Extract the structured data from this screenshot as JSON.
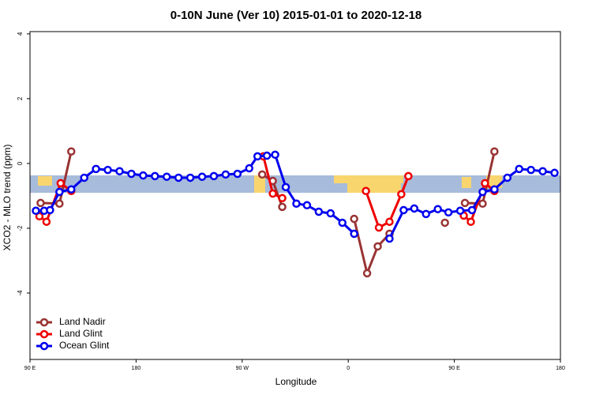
{
  "chart_data": {
    "type": "line",
    "title": "0-10N June (Ver 10)   2015-01-01 to 2020-12-18",
    "x_label": "Longitude",
    "y_label": "XCO2 - MLO trend (ppm)",
    "xlim": [
      90,
      540
    ],
    "xticks": [
      {
        "value": 90,
        "label": "90 E"
      },
      180,
      {
        "value": 270,
        "label": "90 W"
      },
      {
        "value": 360,
        "label": "0"
      },
      {
        "value": 450,
        "label": "90 E"
      },
      {
        "value": 540,
        "label": "180"
      }
    ],
    "ylim": [
      -6.05,
      4.07
    ],
    "yticks": [
      -4,
      -2,
      0,
      2,
      4
    ],
    "legend": "bottom-left",
    "series": [
      {
        "name": "Land Nadir",
        "color": "#993333",
        "x": [
          99,
          115,
          125,
          null,
          287,
          296,
          304,
          null,
          365,
          376,
          385,
          395,
          null,
          442,
          null,
          459,
          474,
          484
        ],
        "values": [
          -1.22,
          -1.24,
          0.37,
          null,
          -0.34,
          -0.54,
          -1.34,
          null,
          -1.71,
          -3.39,
          -2.56,
          -2.17,
          null,
          -1.83,
          null,
          -1.22,
          -1.24,
          0.37
        ]
      },
      {
        "name": "Land Glint",
        "color": "#ee0000",
        "x": [
          98,
          104,
          116,
          125,
          null,
          288,
          296,
          304,
          null,
          375,
          386,
          395,
          405,
          411,
          null,
          458,
          464,
          476,
          484
        ],
        "values": [
          -1.63,
          -1.8,
          -0.61,
          -0.85,
          null,
          0.22,
          -0.93,
          -1.07,
          null,
          -0.85,
          -1.98,
          -1.8,
          -0.95,
          -0.39,
          null,
          -1.61,
          -1.8,
          -0.61,
          -0.85
        ]
      },
      {
        "name": "Ocean Glint",
        "color": "#0000ee",
        "x": [
          95,
          102,
          107,
          115,
          125,
          136,
          146,
          156,
          166,
          176,
          186,
          196,
          206,
          216,
          226,
          236,
          246,
          256,
          266,
          276,
          283,
          291,
          298,
          307,
          316,
          325,
          335,
          345,
          355,
          365,
          null,
          395,
          407,
          416,
          426,
          436,
          445,
          455,
          465,
          474,
          484,
          495,
          505,
          515,
          525,
          535
        ],
        "values": [
          -1.46,
          -1.46,
          -1.44,
          -0.88,
          -0.8,
          -0.44,
          -0.17,
          -0.2,
          -0.24,
          -0.32,
          -0.37,
          -0.39,
          -0.41,
          -0.44,
          -0.44,
          -0.41,
          -0.39,
          -0.34,
          -0.32,
          -0.15,
          0.22,
          0.24,
          0.27,
          -0.73,
          -1.24,
          -1.29,
          -1.49,
          -1.54,
          -1.83,
          -2.17,
          null,
          -2.32,
          -1.44,
          -1.39,
          -1.56,
          -1.41,
          -1.51,
          -1.46,
          -1.44,
          -0.88,
          -0.8,
          -0.44,
          -0.17,
          -0.2,
          -0.24,
          -0.29
        ]
      }
    ]
  }
}
